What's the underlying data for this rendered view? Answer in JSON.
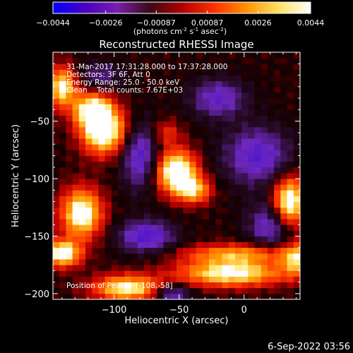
{
  "chart_data": [
    {
      "type": "bar",
      "role": "colorbar",
      "tick_labels": [
        "-0.0044",
        "-0.0026",
        "-0.00087",
        "0.00087",
        "0.0026",
        "0.0044"
      ],
      "range": [
        -0.0044,
        0.0044
      ],
      "units_label_parts": [
        "(photons cm",
        "-2",
        " s",
        "-1",
        " asec",
        "-2",
        ")"
      ],
      "colormap": [
        "#0000ff",
        "#4a00c0",
        "#7a1eb0",
        "#3a0a18",
        "#b00000",
        "#ff3000",
        "#ff9000",
        "#ffe060",
        "#ffffff"
      ]
    },
    {
      "type": "heatmap",
      "title": "Reconstructed RHESSI Image",
      "xlabel": "Heliocentric X (arcsec)",
      "ylabel": "Heliocentric Y (arcsec)",
      "xlim": [
        -147,
        43
      ],
      "ylim": [
        -205,
        10
      ],
      "x_ticks": [
        -100,
        -50,
        0
      ],
      "x_tick_labels": [
        "−100",
        "−50",
        "0"
      ],
      "y_ticks": [
        -200,
        -150,
        -100,
        -50
      ],
      "y_tick_labels": [
        "−200",
        "−150",
        "−100",
        "−50"
      ],
      "info_lines": [
        "31-Mar-2017 17:31:28.000 to 17:37:28.000",
        "Detectors: 3F 6F, Att 0",
        "Energy Range: 25.0 - 50.0 keV",
        "Clean    Total counts: 7.67E+03"
      ],
      "peak_label": "Position of Peak = [-108,-58]",
      "sources": [
        {
          "x": -108,
          "y": -58,
          "amp": 1.0,
          "sx": 12,
          "sy": 14
        },
        {
          "x": -117,
          "y": -40,
          "amp": 0.8,
          "sx": 10,
          "sy": 10
        },
        {
          "x": -52,
          "y": -94,
          "amp": 1.0,
          "sx": 11,
          "sy": 13
        },
        {
          "x": -38,
          "y": -110,
          "amp": 0.6,
          "sx": 9,
          "sy": 8
        },
        {
          "x": -125,
          "y": -130,
          "amp": 0.9,
          "sx": 11,
          "sy": 15
        },
        {
          "x": -140,
          "y": -20,
          "amp": 0.8,
          "sx": 8,
          "sy": 12
        },
        {
          "x": 35,
          "y": -120,
          "amp": 0.95,
          "sx": 9,
          "sy": 15
        },
        {
          "x": -10,
          "y": -182,
          "amp": 0.85,
          "sx": 28,
          "sy": 8
        },
        {
          "x": -90,
          "y": -195,
          "amp": 0.8,
          "sx": 18,
          "sy": 8
        },
        {
          "x": -140,
          "y": -165,
          "amp": 0.9,
          "sx": 10,
          "sy": 8
        },
        {
          "x": -60,
          "y": -60,
          "amp": 0.3,
          "sx": 8,
          "sy": 8
        },
        {
          "x": -5,
          "y": -165,
          "amp": 0.55,
          "sx": 30,
          "sy": 6
        },
        {
          "x": 40,
          "y": -170,
          "amp": 0.6,
          "sx": 8,
          "sy": 10
        }
      ],
      "negatives": [
        {
          "x": -80,
          "y": -80,
          "amp": 0.5,
          "sx": 10,
          "sy": 20
        },
        {
          "x": -75,
          "y": -150,
          "amp": 0.55,
          "sx": 15,
          "sy": 10
        },
        {
          "x": 10,
          "y": -80,
          "amp": 0.5,
          "sx": 18,
          "sy": 18
        },
        {
          "x": 20,
          "y": -140,
          "amp": 0.45,
          "sx": 12,
          "sy": 14
        },
        {
          "x": -20,
          "y": -30,
          "amp": 0.45,
          "sx": 15,
          "sy": 12
        },
        {
          "x": -55,
          "y": -200,
          "amp": 0.45,
          "sx": 10,
          "sy": 6
        },
        {
          "x": -110,
          "y": -10,
          "amp": 0.3,
          "sx": 12,
          "sy": 8
        }
      ]
    }
  ],
  "footer": {
    "date": "6-Sep-2022 03:56"
  }
}
